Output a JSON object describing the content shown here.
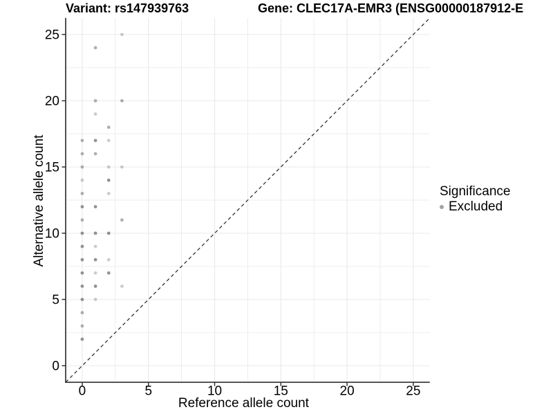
{
  "chart_data": {
    "type": "scatter",
    "title_left": "Variant: rs147939763",
    "title_right": "Gene: CLEC17A-EMR3 (ENSG00000187912-E",
    "xlabel": "Reference allele count",
    "ylabel": "Alternative allele count",
    "xlim": [
      -1.25,
      26.25
    ],
    "ylim": [
      -1.25,
      26.25
    ],
    "xticks": [
      0,
      5,
      10,
      15,
      20,
      25
    ],
    "yticks": [
      0,
      5,
      10,
      15,
      20,
      25
    ],
    "minor_xticks": [
      2.5,
      7.5,
      12.5,
      17.5,
      22.5
    ],
    "minor_yticks": [
      2.5,
      7.5,
      12.5,
      17.5,
      22.5
    ],
    "grid": true,
    "legend_position": "right",
    "identity_line": {
      "style": "dashed",
      "x0": -1.25,
      "y0": -1.25,
      "x1": 26.25,
      "y1": 26.25
    },
    "legend": {
      "title": "Significance",
      "items": [
        {
          "label": "Excluded",
          "color": "#a3a3a3"
        }
      ]
    },
    "series": [
      {
        "name": "Excluded",
        "color": "#7f7f7f",
        "points": [
          [
            0,
            2,
            "d"
          ],
          [
            0,
            3,
            "m"
          ],
          [
            0,
            4,
            "m"
          ],
          [
            0,
            5,
            "d"
          ],
          [
            0,
            6,
            "d"
          ],
          [
            0,
            7,
            "d"
          ],
          [
            0,
            8,
            "d"
          ],
          [
            0,
            9,
            "d"
          ],
          [
            0,
            10,
            "d"
          ],
          [
            0,
            11,
            "m"
          ],
          [
            0,
            12,
            "d"
          ],
          [
            0,
            13,
            "m"
          ],
          [
            0,
            14,
            "l"
          ],
          [
            0,
            15,
            "m"
          ],
          [
            0,
            16,
            "m"
          ],
          [
            0,
            17,
            "m"
          ],
          [
            1,
            5,
            "l"
          ],
          [
            1,
            6,
            "d"
          ],
          [
            1,
            7,
            "l"
          ],
          [
            1,
            8,
            "d"
          ],
          [
            1,
            9,
            "l"
          ],
          [
            1,
            10,
            "d"
          ],
          [
            1,
            12,
            "d"
          ],
          [
            1,
            16,
            "m"
          ],
          [
            1,
            17,
            "d"
          ],
          [
            1,
            19,
            "l"
          ],
          [
            1,
            20,
            "m"
          ],
          [
            1,
            24,
            "m"
          ],
          [
            2,
            7,
            "d"
          ],
          [
            2,
            8,
            "l"
          ],
          [
            2,
            10,
            "d"
          ],
          [
            2,
            13,
            "l"
          ],
          [
            2,
            14,
            "d"
          ],
          [
            2,
            15,
            "l"
          ],
          [
            2,
            17,
            "l"
          ],
          [
            2,
            18,
            "m"
          ],
          [
            3,
            6,
            "l"
          ],
          [
            3,
            11,
            "m"
          ],
          [
            3,
            15,
            "l"
          ],
          [
            3,
            20,
            "m"
          ],
          [
            3,
            25,
            "l"
          ]
        ],
        "shade_opacity": {
          "d": 0.85,
          "m": 0.62,
          "l": 0.4
        }
      }
    ]
  },
  "colors": {
    "background": "#ffffff",
    "grid": "#e8e8e8",
    "axis_line": "#3d3d3d",
    "tick_mark": "#333333",
    "text": "#000000",
    "identity_line": "#222222",
    "point": "#7f7f7f"
  }
}
